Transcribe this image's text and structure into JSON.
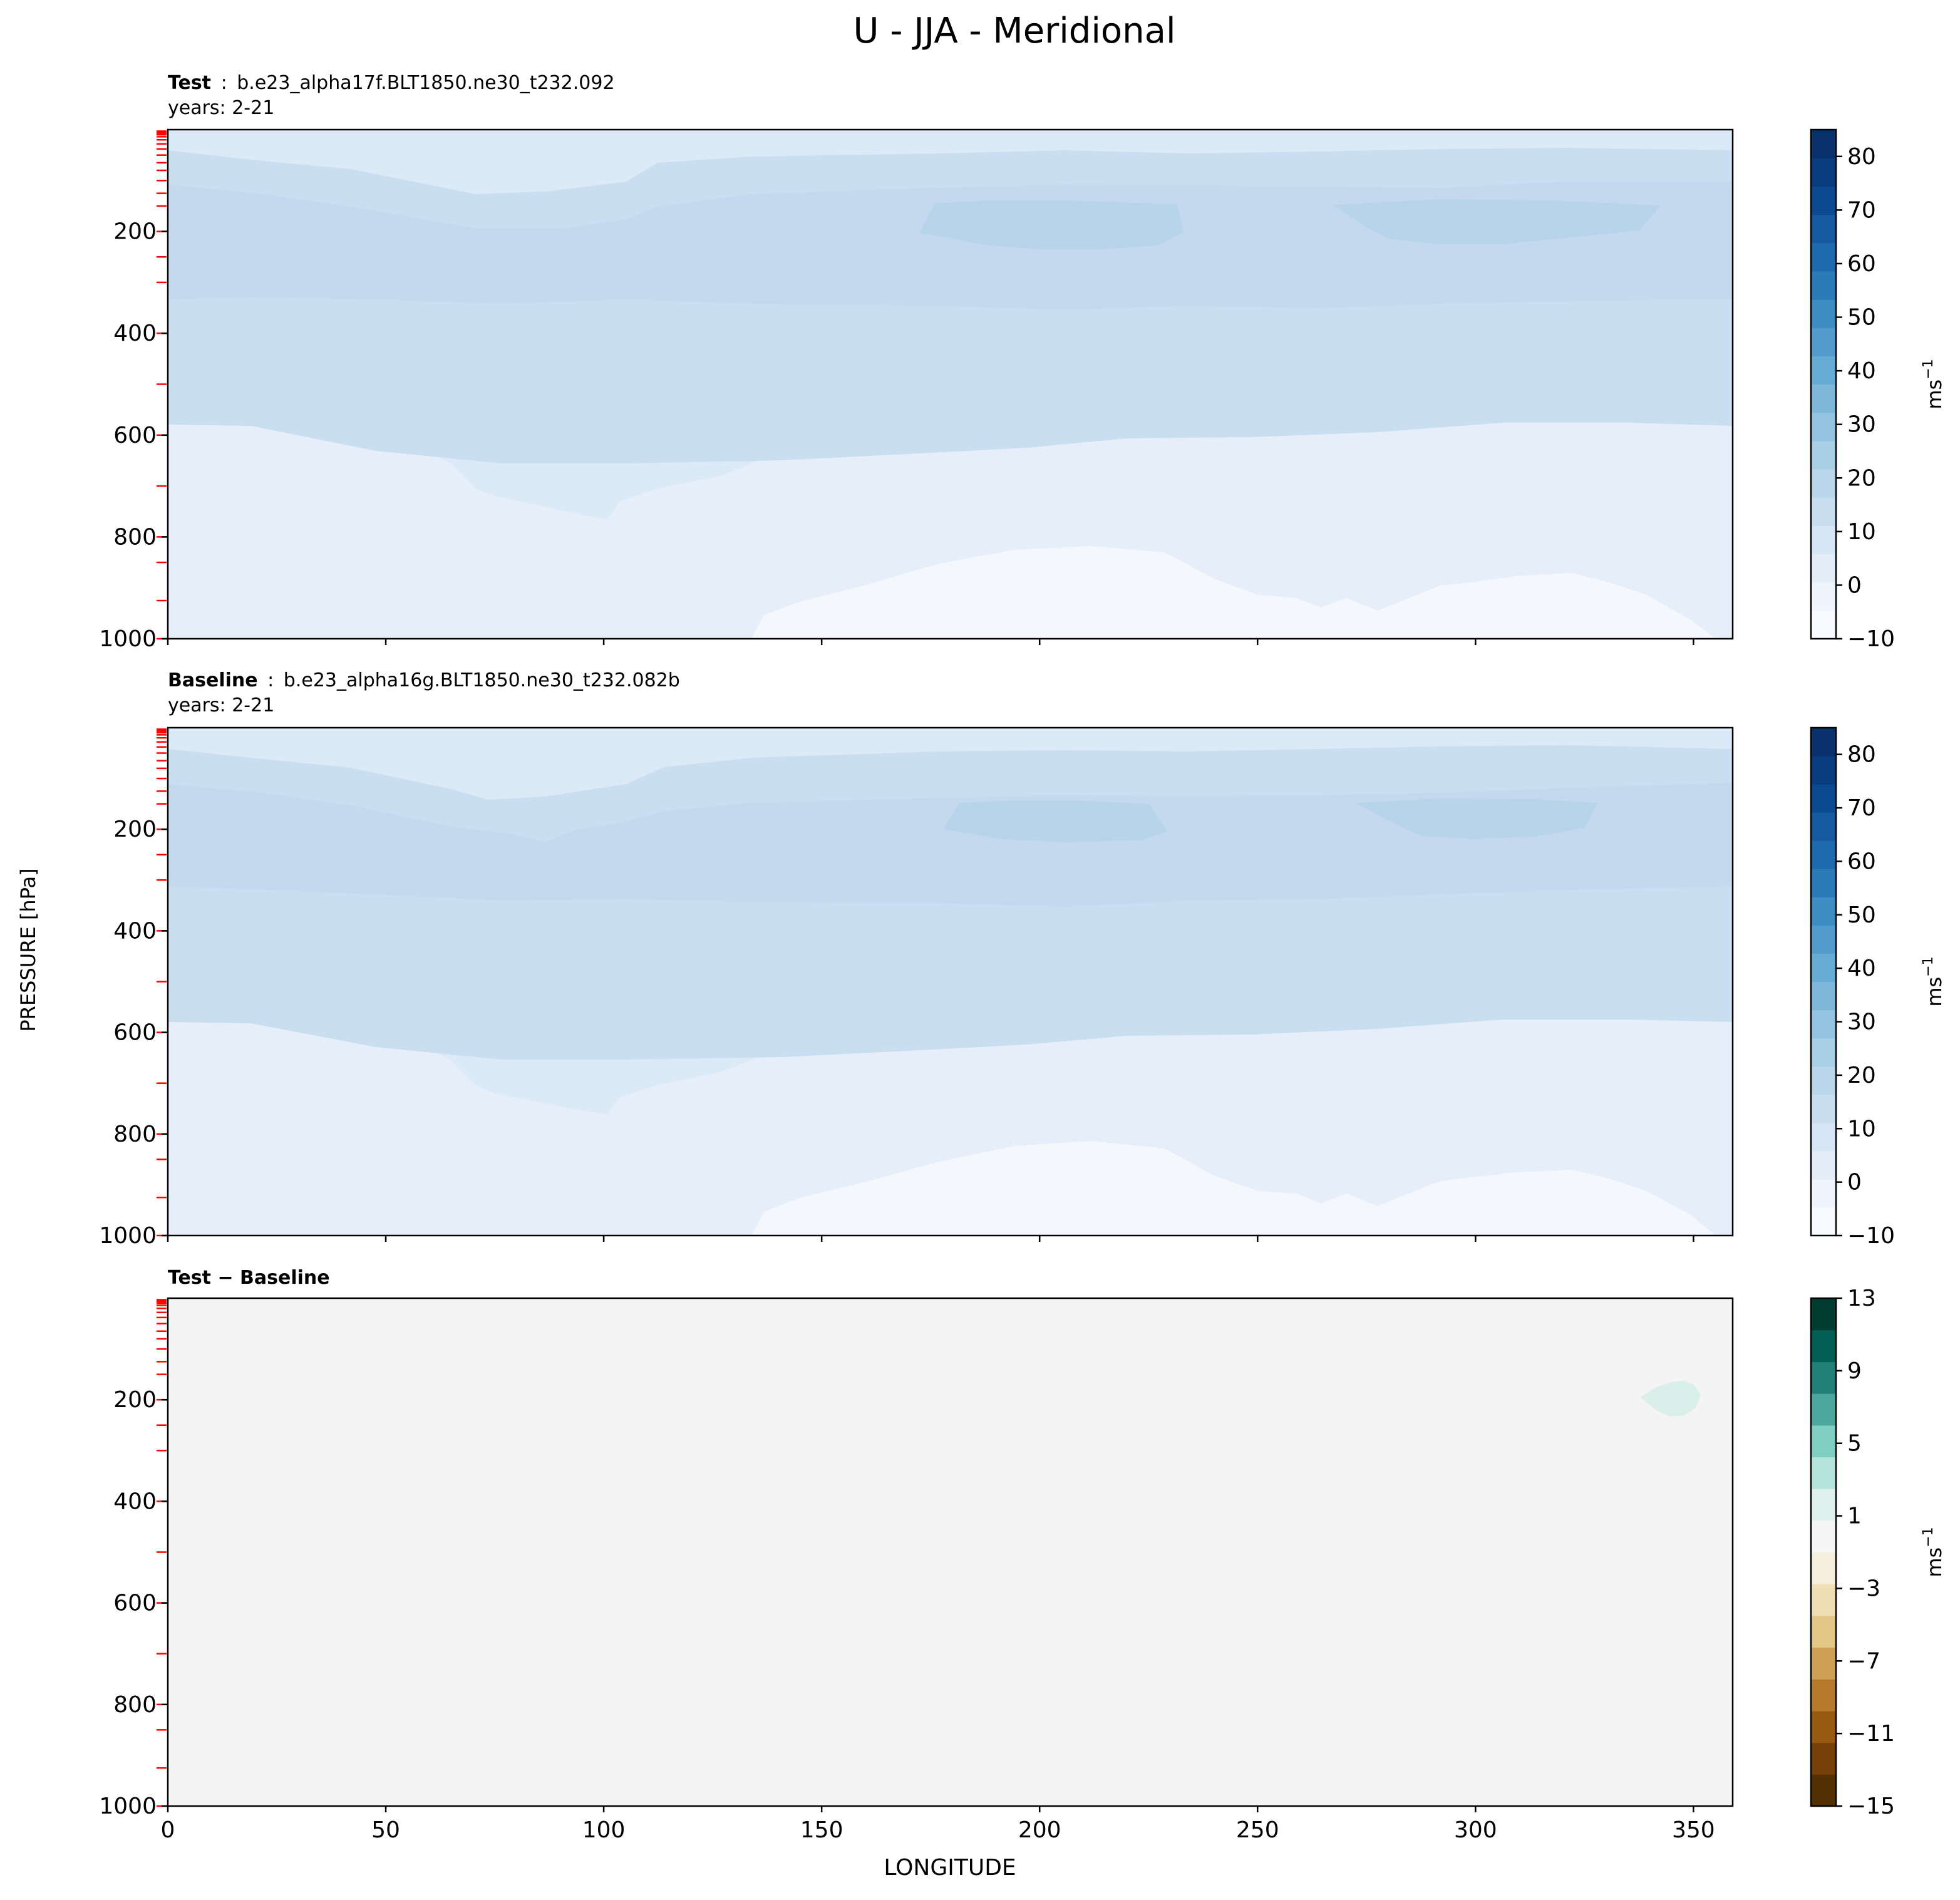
{
  "figure": {
    "title": "U - JJA - Meridional",
    "ylabel": "PRESSURE [hPa]",
    "xlabel": "LONGITUDE"
  },
  "panels": [
    {
      "title_bold": "Test",
      "title_sep": ":",
      "title_rest": "b.e23_alpha17f.BLT1850.ne30_t232.092",
      "subtitle": "years: 2-21",
      "colorbar": {
        "label": "ms",
        "label_exp": "−1",
        "ticks": [
          "−10",
          "0",
          "10",
          "20",
          "30",
          "40",
          "50",
          "60",
          "70",
          "80"
        ]
      }
    },
    {
      "title_bold": "Baseline",
      "title_sep": ":",
      "title_rest": "b.e23_alpha16g.BLT1850.ne30_t232.082b",
      "subtitle": "years: 2-21",
      "colorbar": {
        "label": "ms",
        "label_exp": "−1",
        "ticks": [
          "−10",
          "0",
          "10",
          "20",
          "30",
          "40",
          "50",
          "60",
          "70",
          "80"
        ]
      }
    },
    {
      "title_bold": "Test − Baseline",
      "title_sep": "",
      "title_rest": "",
      "subtitle": "",
      "colorbar": {
        "label": "ms",
        "label_exp": "−1",
        "ticks": [
          "−15",
          "−11",
          "−7",
          "−3",
          "1",
          "5",
          "9",
          "13"
        ]
      }
    }
  ],
  "chart_data": [
    {
      "type": "heatmap",
      "name": "Test",
      "x_label": "LONGITUDE",
      "y_label": "PRESSURE [hPa]",
      "xlim": [
        0,
        359
      ],
      "ylim": [
        1000,
        0
      ],
      "xticks": [
        0,
        50,
        100,
        150,
        200,
        250,
        300,
        350
      ],
      "yticks": [
        200,
        400,
        600,
        800,
        1000
      ],
      "contour_levels": [
        -10,
        -5,
        0,
        5,
        10,
        15,
        20,
        25,
        30,
        35,
        40,
        45,
        50,
        55,
        60,
        65,
        70,
        75,
        80,
        85
      ],
      "colormap": "Blues",
      "colors": [
        "#f7fbff",
        "#e6eff9",
        "#dce9f6",
        "#d0e1f2",
        "#c6dbef",
        "#b7d4ea"
      ],
      "approx_regions": [
        {
          "range": [
            -5,
            0
          ],
          "desc": "near surface 820-1000 hPa, lon 130-350"
        },
        {
          "range": [
            0,
            5
          ],
          "desc": "background lower/mid troposphere"
        },
        {
          "range": [
            5,
            10
          ],
          "desc": "upper troposphere 100-550 hPa"
        },
        {
          "range": [
            10,
            15
          ],
          "desc": "jet layer 100-340 hPa"
        },
        {
          "range": [
            15,
            20
          ],
          "desc": "jet cores near 150-230 hPa, lon 175-232 and 268-342"
        }
      ]
    },
    {
      "type": "heatmap",
      "name": "Baseline",
      "x_label": "LONGITUDE",
      "y_label": "PRESSURE [hPa]",
      "xlim": [
        0,
        359
      ],
      "ylim": [
        1000,
        0
      ],
      "xticks": [
        0,
        50,
        100,
        150,
        200,
        250,
        300,
        350
      ],
      "yticks": [
        200,
        400,
        600,
        800,
        1000
      ],
      "contour_levels": [
        -10,
        -5,
        0,
        5,
        10,
        15,
        20,
        25,
        30,
        35,
        40,
        45,
        50,
        55,
        60,
        65,
        70,
        75,
        80,
        85
      ],
      "colormap": "Blues",
      "colors": [
        "#f7fbff",
        "#e6eff9",
        "#dce9f6",
        "#d0e1f2",
        "#c6dbef",
        "#b7d4ea"
      ],
      "approx_regions": [
        {
          "range": [
            -5,
            0
          ],
          "desc": "near surface 820-1000 hPa, lon 135-350"
        },
        {
          "range": [
            0,
            5
          ],
          "desc": "background lower/mid troposphere"
        },
        {
          "range": [
            5,
            10
          ],
          "desc": "upper troposphere 100-545 hPa"
        },
        {
          "range": [
            10,
            15
          ],
          "desc": "jet layer 110-330 hPa"
        },
        {
          "range": [
            15,
            20
          ],
          "desc": "jet cores near 150-225 hPa, lon 178-228 and 272-327"
        }
      ]
    },
    {
      "type": "heatmap",
      "name": "Test − Baseline",
      "x_label": "LONGITUDE",
      "y_label": "PRESSURE [hPa]",
      "xlim": [
        0,
        359
      ],
      "ylim": [
        1000,
        0
      ],
      "xticks": [
        0,
        50,
        100,
        150,
        200,
        250,
        300,
        350
      ],
      "yticks": [
        200,
        400,
        600,
        800,
        1000
      ],
      "contour_levels": [
        -15,
        -13,
        -11,
        -9,
        -7,
        -5,
        -3,
        -1,
        1,
        3,
        5,
        7,
        9,
        11,
        13
      ],
      "colormap": "BrBG",
      "colors": [
        "#f3f4f3",
        "#d9efea"
      ],
      "approx_regions": [
        {
          "range": [
            -1,
            1
          ],
          "desc": "entire domain"
        },
        {
          "range": [
            1,
            3
          ],
          "desc": "small patch near 200 hPa, lon 337-350"
        }
      ]
    }
  ],
  "colors": {
    "blues": [
      "#f7fbff",
      "#eef5fc",
      "#e3eef9",
      "#d6e6f4",
      "#c9ddf0",
      "#bad6eb",
      "#a9cfe5",
      "#94c4df",
      "#7db8da",
      "#66abd4",
      "#519ccc",
      "#3d8dc4",
      "#2c7bb9",
      "#1f6aaf",
      "#1459a2",
      "#0b4a91",
      "#083d7f",
      "#08306b"
    ],
    "brbg": [
      "#543005",
      "#774008",
      "#985a11",
      "#b67a2c",
      "#cea155",
      "#e2c787",
      "#f1dfb4",
      "#f6eedc",
      "#f5f5f5",
      "#dff1ed",
      "#b4e3da",
      "#80cdc1",
      "#4ca79c",
      "#1e8077",
      "#015f53",
      "#003c30"
    ],
    "level_tick": "#ff0000"
  }
}
